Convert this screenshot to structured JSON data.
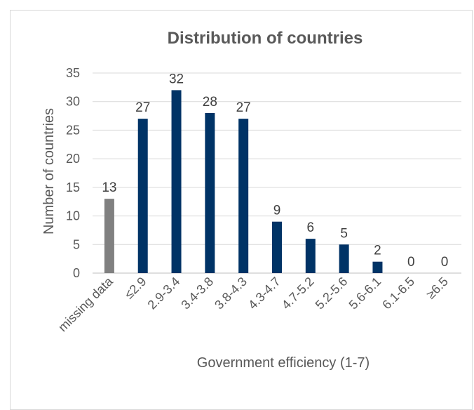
{
  "chart_data": {
    "type": "bar",
    "title": "Distribution of countries",
    "xlabel": "Government efficiency (1-7)",
    "ylabel": "Number of countries",
    "categories": [
      "missing data",
      "≤2.9",
      "2.9-3.4",
      "3.4-3.8",
      "3.8-4.3",
      "4.3-4.7",
      "4.7-5.2",
      "5.2-5.6",
      "5.6-6.1",
      "6.1-6.5",
      "≥6.5"
    ],
    "values": [
      13,
      27,
      32,
      28,
      27,
      9,
      6,
      5,
      2,
      0,
      0
    ],
    "ylim": [
      0,
      35
    ],
    "yticks": [
      0,
      5,
      10,
      15,
      20,
      25,
      30,
      35
    ],
    "grid": true,
    "legend": "none",
    "colors": {
      "missing": "#808080",
      "bar": "#003366",
      "grid": "#d9d9d9",
      "text": "#595959"
    }
  }
}
